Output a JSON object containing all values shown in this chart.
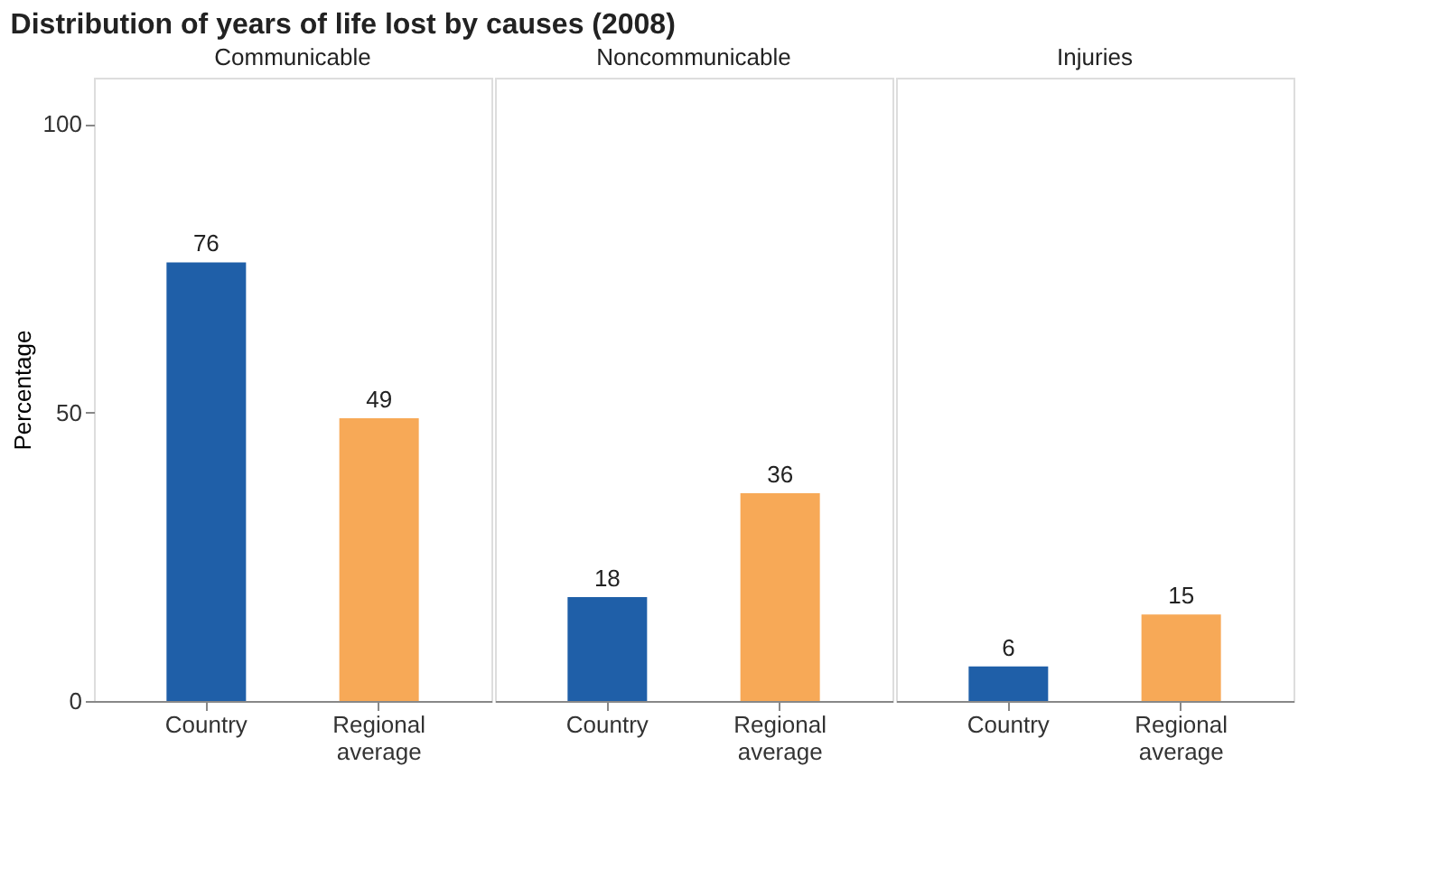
{
  "chart_data": [
    {
      "type": "bar",
      "title": "Distribution of years of life lost by causes (2008)",
      "subtitle": "Communicable",
      "ylabel": "Percentage",
      "categories": [
        "Country",
        "Regional average"
      ],
      "values": [
        76,
        49
      ],
      "colors": [
        "#1f5fa8",
        "#f7a957"
      ],
      "ylim": [
        0,
        108
      ],
      "yticks": [
        0,
        50,
        100
      ],
      "data_labels": true,
      "grid": false,
      "legend": false
    },
    {
      "type": "bar",
      "subtitle": "Noncommunicable",
      "categories": [
        "Country",
        "Regional average"
      ],
      "values": [
        18,
        36
      ],
      "colors": [
        "#1f5fa8",
        "#f7a957"
      ],
      "ylim": [
        0,
        108
      ],
      "yticks": [
        0,
        50,
        100
      ],
      "data_labels": true,
      "grid": false,
      "legend": false,
      "tick_labels": "x"
    },
    {
      "type": "bar",
      "subtitle": "Injuries",
      "categories": [
        "Country",
        "Regional average"
      ],
      "values": [
        6,
        15
      ],
      "colors": [
        "#1f5fa8",
        "#f7a957"
      ],
      "ylim": [
        0,
        108
      ],
      "yticks": [
        0,
        50,
        100
      ],
      "data_labels": true,
      "grid": false,
      "legend": false,
      "tick_labels": "x"
    }
  ]
}
